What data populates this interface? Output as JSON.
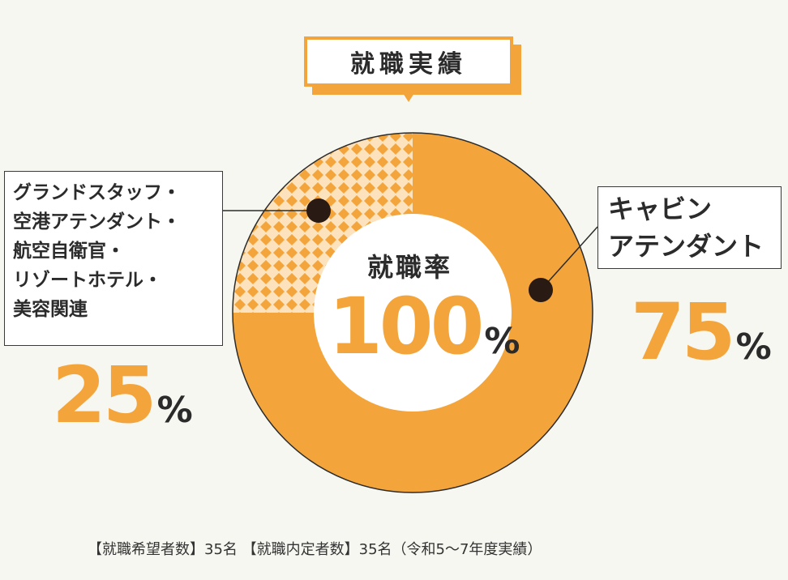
{
  "title": "就職実績",
  "center": {
    "label": "就職率",
    "value": "100",
    "unit": "%"
  },
  "chart_data": {
    "type": "pie",
    "title": "就職実績",
    "slices": [
      {
        "label_lines": [
          "キャビン",
          "アテンダント"
        ],
        "value": 75,
        "value_text": "75",
        "unit": "%",
        "color": "#f3a53c",
        "pattern": "solid"
      },
      {
        "label_lines": [
          "グランドスタッフ・",
          "空港アテンダント・",
          "航空自衛官・",
          "リゾートホテル・",
          "美容関連"
        ],
        "value": 25,
        "value_text": "25",
        "unit": "%",
        "color": "#f3a53c",
        "pattern": "diamond-check"
      }
    ],
    "donut": true
  },
  "footnote": "【就職希望者数】35名 【就職内定者数】35名（令和5〜7年度実績）",
  "colors": {
    "accent": "#f3a53c",
    "accent_light": "#fde3bd",
    "background": "#f7f7f2",
    "text": "#2b2b2b"
  }
}
